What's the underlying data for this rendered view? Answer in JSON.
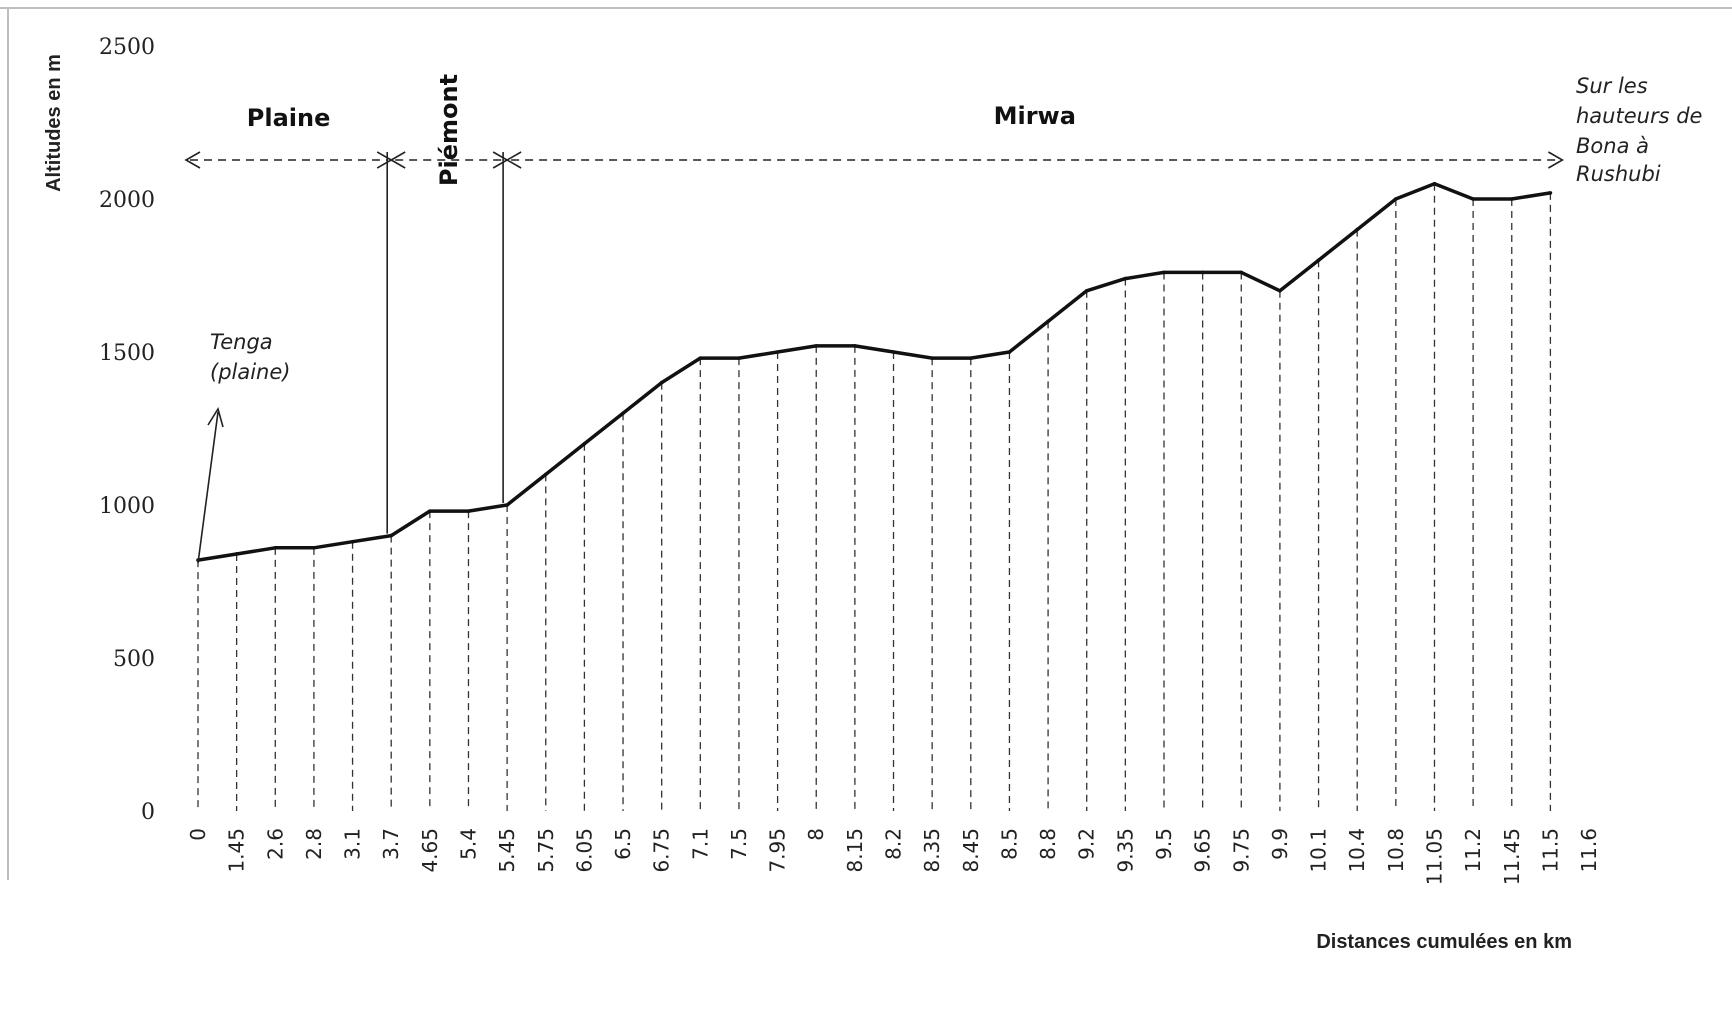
{
  "chart_data": {
    "type": "line",
    "title": "",
    "xlabel": "Distances cumulées en km",
    "ylabel": "Altitudes en m",
    "ylim": [
      0,
      2500
    ],
    "yticks": [
      0,
      500,
      1000,
      1500,
      2000,
      2500
    ],
    "categories": [
      "0",
      "1.45",
      "2.6",
      "2.8",
      "3.1",
      "3.7",
      "4.65",
      "5.4",
      "5.45",
      "5.75",
      "6.05",
      "6.5",
      "6.75",
      "7.1",
      "7.5",
      "7.95",
      "8",
      "8.15",
      "8.2",
      "8.35",
      "8.45",
      "8.5",
      "8.8",
      "9.2",
      "9.35",
      "9.5",
      "9.65",
      "9.75",
      "9.9",
      "10.1",
      "10.4",
      "10.8",
      "11.05",
      "11.2",
      "11.45",
      "11.5",
      "11.6"
    ],
    "series": [
      {
        "values": [
          820,
          840,
          860,
          860,
          880,
          900,
          980,
          980,
          1000,
          1100,
          1200,
          1300,
          1400,
          1480,
          1480,
          1500,
          1520,
          1520,
          1500,
          1480,
          1480,
          1500,
          1600,
          1700,
          1740,
          1760,
          1760,
          1760,
          1700,
          1800,
          1900,
          2000,
          2050,
          2000,
          2000,
          2020,
          null
        ]
      }
    ],
    "grid": "vertical dashed drop lines",
    "zones": [
      {
        "label": "Plaine",
        "from": "0",
        "to": "3.7"
      },
      {
        "label": "Piémont",
        "from": "3.7",
        "to": "5.45"
      },
      {
        "label": "Mirwa",
        "from": "5.45",
        "to": "11.5"
      }
    ],
    "annotations": {
      "start": [
        "Tenga",
        "(plaine)"
      ],
      "end": [
        "Sur les",
        "hauteurs de",
        "Bona à",
        "Rushubi"
      ]
    }
  }
}
